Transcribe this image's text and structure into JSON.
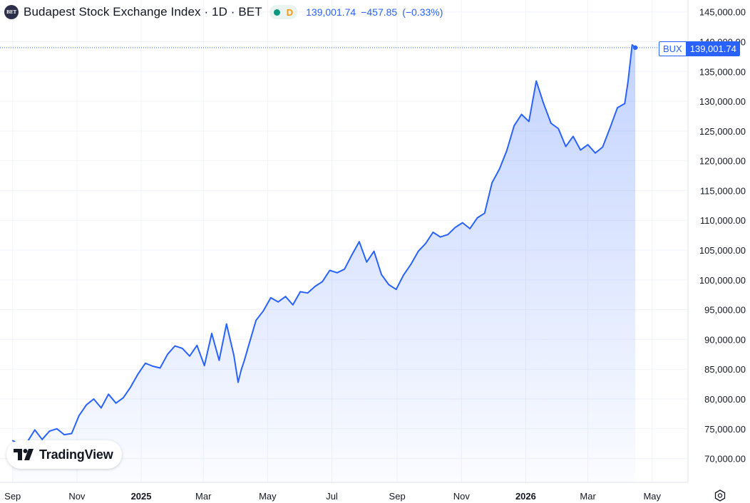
{
  "legend": {
    "logo_text": "BET",
    "title": "Budapest Stock Exchange Index · 1D · BET",
    "delay_label": "D",
    "last": "139,001.74",
    "change": "−457.85",
    "change_pct": "(−0.33%)"
  },
  "last_badge": {
    "symbol": "BUX",
    "price": "139,001.74"
  },
  "branding": {
    "name": "TradingView"
  },
  "colors": {
    "line": "#2962ff",
    "grid": "#f0f3fa",
    "axis_text": "#131722",
    "market_open": "#089981",
    "delay": "#ff9800"
  },
  "chart_data": {
    "type": "area",
    "title": "Budapest Stock Exchange Index · 1D · BET",
    "xlabel": "",
    "ylabel": "",
    "ylim": [
      66000,
      147000
    ],
    "y_ticks": [
      "145,000.00",
      "140,000.00",
      "135,000.00",
      "130,000.00",
      "125,000.00",
      "120,000.00",
      "115,000.00",
      "110,000.00",
      "105,000.00",
      "100,000.00",
      "95,000.00",
      "90,000.00",
      "85,000.00",
      "80,000.00",
      "75,000.00",
      "70,000.00"
    ],
    "x_ticks": [
      {
        "label": "Sep",
        "date": "2024-09-01",
        "bold": false
      },
      {
        "label": "Nov",
        "date": "2024-11-01",
        "bold": false
      },
      {
        "label": "2025",
        "date": "2025-01-01",
        "bold": true
      },
      {
        "label": "Mar",
        "date": "2025-03-01",
        "bold": false
      },
      {
        "label": "May",
        "date": "2025-05-01",
        "bold": false
      },
      {
        "label": "Jul",
        "date": "2025-07-01",
        "bold": false
      },
      {
        "label": "Sep",
        "date": "2025-09-01",
        "bold": false
      },
      {
        "label": "Nov",
        "date": "2025-11-01",
        "bold": false
      },
      {
        "label": "2026",
        "date": "2026-01-01",
        "bold": true
      },
      {
        "label": "Mar",
        "date": "2026-03-01",
        "bold": false
      },
      {
        "label": "May",
        "date": "2026-05-01",
        "bold": false
      }
    ],
    "series": [
      {
        "x": [
          "2024-09-01",
          "2024-09-08",
          "2024-09-15",
          "2024-09-22",
          "2024-09-29",
          "2024-10-06",
          "2024-10-13",
          "2024-10-20",
          "2024-10-27",
          "2024-11-03",
          "2024-11-10",
          "2024-11-17",
          "2024-11-24",
          "2024-12-01",
          "2024-12-08",
          "2024-12-15",
          "2024-12-22",
          "2024-12-29",
          "2025-01-05",
          "2025-01-12",
          "2025-01-19",
          "2025-01-26",
          "2025-02-02",
          "2025-02-09",
          "2025-02-16",
          "2025-02-23",
          "2025-03-02",
          "2025-03-09",
          "2025-03-16",
          "2025-03-23",
          "2025-03-30",
          "2025-04-03",
          "2025-04-06",
          "2025-04-09",
          "2025-04-13",
          "2025-04-20",
          "2025-04-27",
          "2025-05-04",
          "2025-05-11",
          "2025-05-18",
          "2025-05-25",
          "2025-06-01",
          "2025-06-08",
          "2025-06-15",
          "2025-06-22",
          "2025-06-29",
          "2025-07-06",
          "2025-07-13",
          "2025-07-20",
          "2025-07-27",
          "2025-08-03",
          "2025-08-10",
          "2025-08-17",
          "2025-08-24",
          "2025-08-31",
          "2025-09-07",
          "2025-09-14",
          "2025-09-21",
          "2025-09-28",
          "2025-10-05",
          "2025-10-12",
          "2025-10-19",
          "2025-10-26",
          "2025-11-02",
          "2025-11-09",
          "2025-11-16",
          "2025-11-23",
          "2025-11-30",
          "2025-12-07",
          "2025-12-14",
          "2025-12-21",
          "2025-12-28",
          "2026-01-04",
          "2026-01-11",
          "2026-01-18",
          "2026-01-25",
          "2026-02-01",
          "2026-02-08",
          "2026-02-15",
          "2026-02-22",
          "2026-03-01",
          "2026-03-08",
          "2026-03-15",
          "2026-03-22",
          "2026-03-29",
          "2026-04-05",
          "2026-04-08",
          "2026-04-12",
          "2026-04-15"
        ],
        "values": [
          73000,
          72500,
          72800,
          74800,
          73200,
          74600,
          75000,
          74000,
          74200,
          77200,
          79000,
          80000,
          78500,
          80800,
          79300,
          80200,
          82000,
          84200,
          86000,
          85500,
          85200,
          87500,
          88900,
          88500,
          87200,
          89000,
          85600,
          91000,
          86500,
          92600,
          87300,
          82800,
          84900,
          86500,
          89000,
          93200,
          94800,
          97000,
          96300,
          97200,
          95800,
          98000,
          97800,
          98900,
          99700,
          101600,
          101200,
          101800,
          104200,
          106400,
          103000,
          104800,
          100900,
          99200,
          98400,
          100800,
          102600,
          104800,
          106100,
          108000,
          107200,
          107600,
          108800,
          109600,
          108600,
          110400,
          111200,
          116300,
          118600,
          121700,
          125900,
          127800,
          126600,
          133400,
          129600,
          126300,
          125400,
          122400,
          124100,
          121800,
          122700,
          121300,
          122300,
          125500,
          128900,
          129600,
          133200,
          139458,
          139001.74
        ]
      }
    ]
  }
}
